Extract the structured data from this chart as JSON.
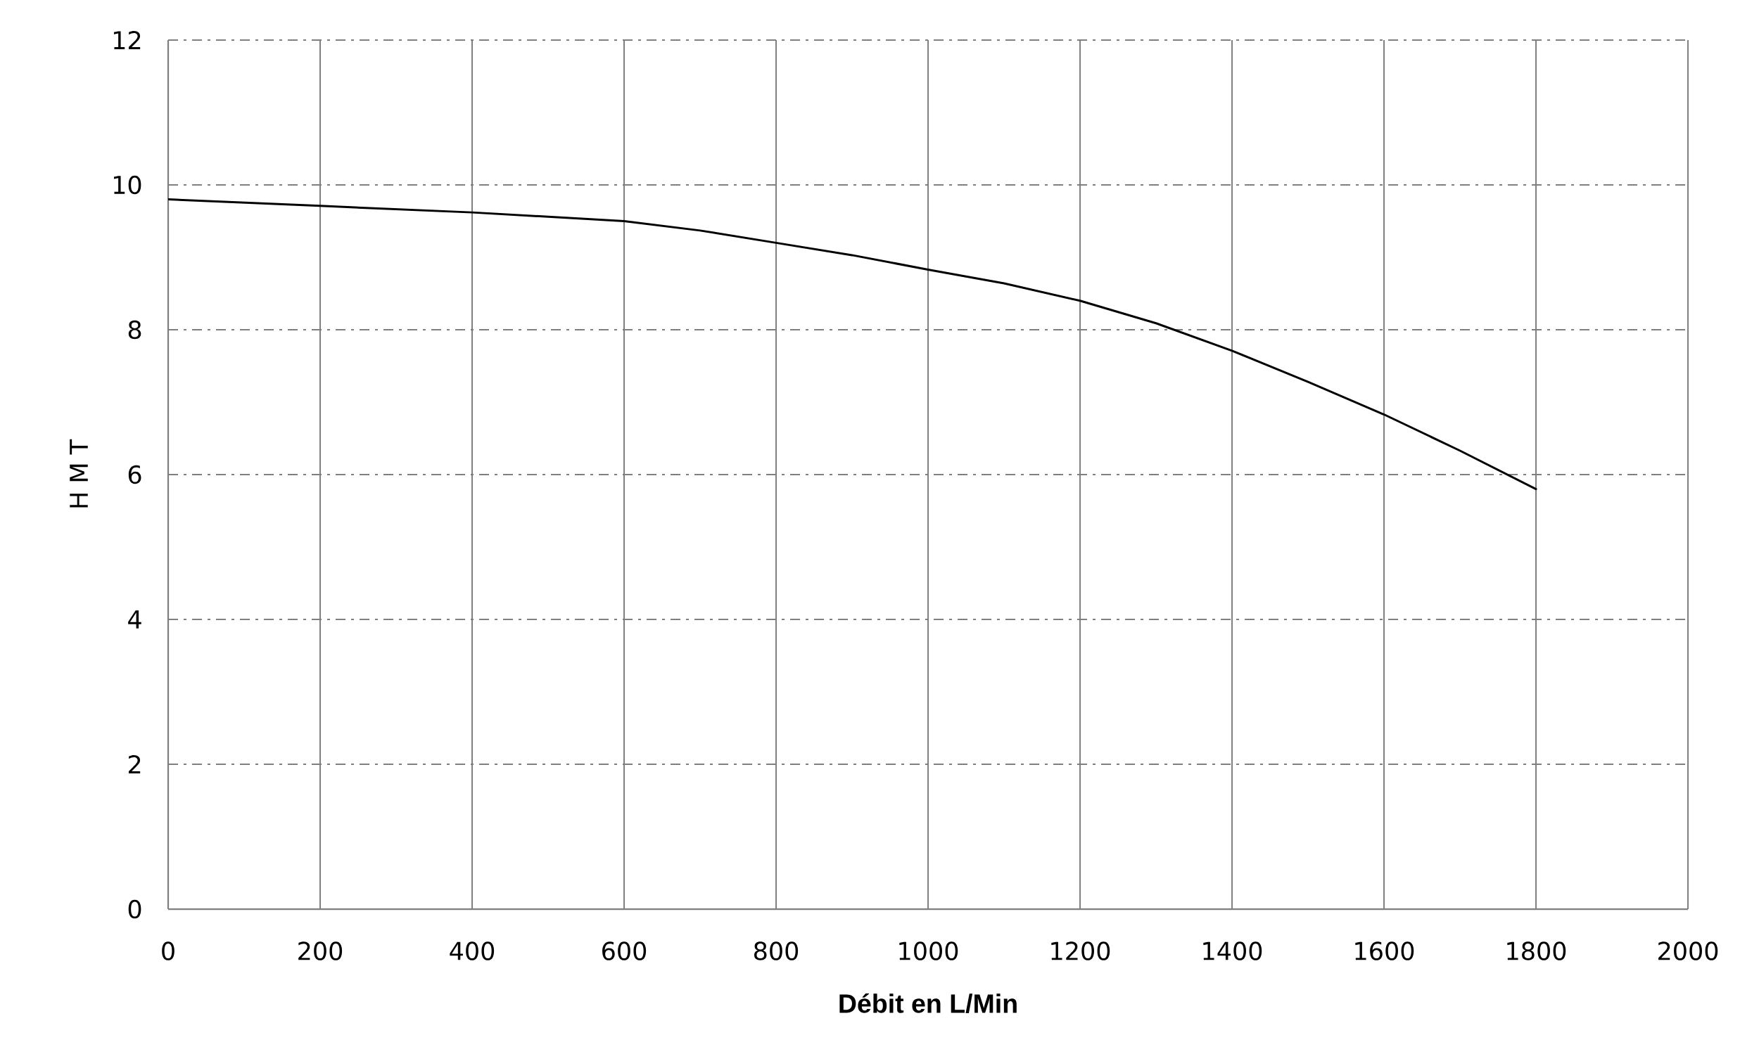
{
  "chart_data": {
    "type": "line",
    "xlabel": "Débit en L/Min",
    "ylabel": "H M T",
    "x": [
      0,
      200,
      400,
      600,
      700,
      800,
      900,
      1000,
      1100,
      1200,
      1300,
      1400,
      1500,
      1600,
      1700,
      1800
    ],
    "series": [
      {
        "color": "#000000",
        "values": [
          9.8,
          9.71,
          9.62,
          9.5,
          9.37,
          9.2,
          9.03,
          8.83,
          8.64,
          8.4,
          8.09,
          7.71,
          7.28,
          6.83,
          6.33,
          5.8
        ]
      }
    ],
    "xlim": [
      0,
      2000
    ],
    "ylim": [
      0,
      12
    ],
    "xticks": [
      0,
      200,
      400,
      600,
      800,
      1000,
      1200,
      1400,
      1600,
      1800,
      2000
    ],
    "yticks": [
      0,
      2,
      4,
      6,
      8,
      10,
      12
    ],
    "grid": true,
    "line_style": "solid"
  }
}
